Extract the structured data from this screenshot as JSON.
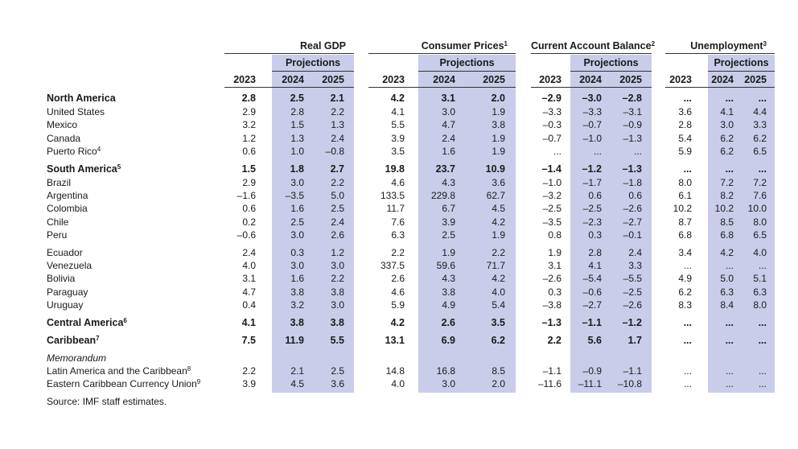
{
  "table": {
    "groups": [
      {
        "title": "Real GDP",
        "years": [
          "2023",
          "2024",
          "2025"
        ],
        "projections": "Projections"
      },
      {
        "title": "Consumer Prices",
        "note": "1",
        "years": [
          "2023",
          "2024",
          "2025"
        ],
        "projections": "Projections"
      },
      {
        "title": "Current Account Balance",
        "note": "2",
        "years": [
          "2023",
          "2024",
          "2025"
        ],
        "projections": "Projections"
      },
      {
        "title": "Unemployment",
        "note": "3",
        "years": [
          "2023",
          "2024",
          "2025"
        ],
        "projections": "Projections"
      }
    ],
    "sections": [
      [
        {
          "label": "North America",
          "bold": true,
          "values": [
            "2.8",
            "2.5",
            "2.1",
            "4.2",
            "3.1",
            "2.0",
            "–2.9",
            "–3.0",
            "–2.8",
            "...",
            "...",
            "..."
          ]
        },
        {
          "label": "United States",
          "values": [
            "2.9",
            "2.8",
            "2.2",
            "4.1",
            "3.0",
            "1.9",
            "–3.3",
            "–3.3",
            "–3.1",
            "3.6",
            "4.1",
            "4.4"
          ]
        },
        {
          "label": "Mexico",
          "values": [
            "3.2",
            "1.5",
            "1.3",
            "5.5",
            "4.7",
            "3.8",
            "–0.3",
            "–0.7",
            "–0.9",
            "2.8",
            "3.0",
            "3.3"
          ]
        },
        {
          "label": "Canada",
          "values": [
            "1.2",
            "1.3",
            "2.4",
            "3.9",
            "2.4",
            "1.9",
            "–0.7",
            "–1.0",
            "–1.3",
            "5.4",
            "6.2",
            "6.2"
          ]
        },
        {
          "label": "Puerto Rico",
          "note": "4",
          "values": [
            "0.6",
            "1.0",
            "–0.8",
            "3.5",
            "1.6",
            "1.9",
            "...",
            "...",
            "...",
            "5.9",
            "6.2",
            "6.5"
          ]
        }
      ],
      [
        {
          "label": "South America",
          "note": "5",
          "bold": true,
          "values": [
            "1.5",
            "1.8",
            "2.7",
            "19.8",
            "23.7",
            "10.9",
            "–1.4",
            "–1.2",
            "–1.3",
            "...",
            "...",
            "..."
          ]
        },
        {
          "label": "Brazil",
          "values": [
            "2.9",
            "3.0",
            "2.2",
            "4.6",
            "4.3",
            "3.6",
            "–1.0",
            "–1.7",
            "–1.8",
            "8.0",
            "7.2",
            "7.2"
          ]
        },
        {
          "label": "Argentina",
          "values": [
            "–1.6",
            "–3.5",
            "5.0",
            "133.5",
            "229.8",
            "62.7",
            "–3.2",
            "0.6",
            "0.6",
            "6.1",
            "8.2",
            "7.6"
          ]
        },
        {
          "label": "Colombia",
          "values": [
            "0.6",
            "1.6",
            "2.5",
            "11.7",
            "6.7",
            "4.5",
            "–2.5",
            "–2.5",
            "–2.6",
            "10.2",
            "10.2",
            "10.0"
          ]
        },
        {
          "label": "Chile",
          "values": [
            "0.2",
            "2.5",
            "2.4",
            "7.6",
            "3.9",
            "4.2",
            "–3.5",
            "–2.3",
            "–2.7",
            "8.7",
            "8.5",
            "8.0"
          ]
        },
        {
          "label": "Peru",
          "values": [
            "–0.6",
            "3.0",
            "2.6",
            "6.3",
            "2.5",
            "1.9",
            "0.8",
            "0.3",
            "–0.1",
            "6.8",
            "6.8",
            "6.5"
          ]
        }
      ],
      [
        {
          "label": "Ecuador",
          "values": [
            "2.4",
            "0.3",
            "1.2",
            "2.2",
            "1.9",
            "2.2",
            "1.9",
            "2.8",
            "2.4",
            "3.4",
            "4.2",
            "4.0"
          ]
        },
        {
          "label": "Venezuela",
          "values": [
            "4.0",
            "3.0",
            "3.0",
            "337.5",
            "59.6",
            "71.7",
            "3.1",
            "4.1",
            "3.3",
            "...",
            "...",
            "..."
          ]
        },
        {
          "label": "Bolivia",
          "values": [
            "3.1",
            "1.6",
            "2.2",
            "2.6",
            "4.3",
            "4.2",
            "–2.6",
            "–5.4",
            "–5.5",
            "4.9",
            "5.0",
            "5.1"
          ]
        },
        {
          "label": "Paraguay",
          "values": [
            "4.7",
            "3.8",
            "3.8",
            "4.6",
            "3.8",
            "4.0",
            "0.3",
            "–0.6",
            "–2.5",
            "6.2",
            "6.3",
            "6.3"
          ]
        },
        {
          "label": "Uruguay",
          "values": [
            "0.4",
            "3.2",
            "3.0",
            "5.9",
            "4.9",
            "5.4",
            "–3.8",
            "–2.7",
            "–2.6",
            "8.3",
            "8.4",
            "8.0"
          ]
        }
      ],
      [
        {
          "label": "Central America",
          "note": "6",
          "bold": true,
          "values": [
            "4.1",
            "3.8",
            "3.8",
            "4.2",
            "2.6",
            "3.5",
            "–1.3",
            "–1.1",
            "–1.2",
            "...",
            "...",
            "..."
          ]
        }
      ],
      [
        {
          "label": "Caribbean",
          "note": "7",
          "bold": true,
          "values": [
            "7.5",
            "11.9",
            "5.5",
            "13.1",
            "6.9",
            "6.2",
            "2.2",
            "5.6",
            "1.7",
            "...",
            "...",
            "..."
          ]
        }
      ],
      [
        {
          "label": "Memorandum",
          "italic": true
        },
        {
          "label": "Latin America and the Caribbean",
          "note": "8",
          "values": [
            "2.2",
            "2.1",
            "2.5",
            "14.8",
            "16.8",
            "8.5",
            "–1.1",
            "–0.9",
            "–1.1",
            "...",
            "...",
            "..."
          ]
        },
        {
          "label": "Eastern Caribbean Currency Union",
          "note": "9",
          "values": [
            "3.9",
            "4.5",
            "3.6",
            "4.0",
            "3.0",
            "2.0",
            "–11.6",
            "–11.1",
            "–10.8",
            "...",
            "...",
            "..."
          ]
        }
      ]
    ],
    "source": "Source: IMF staff estimates."
  }
}
